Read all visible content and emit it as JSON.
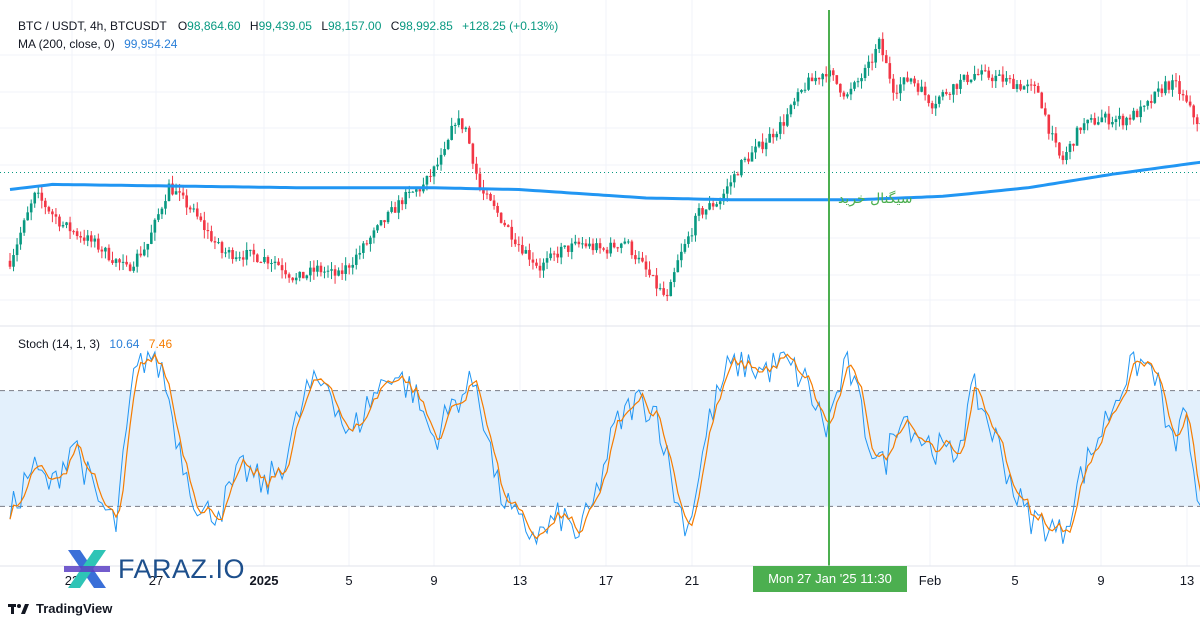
{
  "legend": {
    "symbol": "BTC / USDT, 4h, BTCUSDT",
    "o_label": "O",
    "o_value": "98,864.60",
    "h_label": "H",
    "h_value": "99,439.05",
    "l_label": "L",
    "l_value": "98,157.00",
    "c_label": "C",
    "c_value": "98,992.85",
    "change": "+128.25 (+0.13%)",
    "ma_label": "MA (200, close, 0)",
    "ma_value": "99,954.24",
    "stoch_label": "Stoch (14, 1, 3)",
    "stoch_k": "10.64",
    "stoch_d": "7.46"
  },
  "annotation": "سیگنال خرید",
  "crosshair_label": "Mon 27 Jan '25   11:30",
  "brand": "FARAZ.IO",
  "footer": "TradingView",
  "colors": {
    "up": "#089981",
    "down": "#f23645",
    "ma": "#2196f3",
    "stoch_k": "#2196f3",
    "stoch_d": "#f57c00",
    "signal": "#4caf50",
    "band": "#e3f0fc"
  },
  "chart_data": [
    {
      "type": "candlestick",
      "x_range": [
        "Dec 20 2024",
        "Feb 13 2025"
      ],
      "x_ticks": [
        "23",
        "27",
        "2025",
        "5",
        "9",
        "13",
        "17",
        "21",
        "Feb",
        "5",
        "9",
        "13"
      ],
      "close_path": [
        [
          0,
          93900
        ],
        [
          1.2,
          97800
        ],
        [
          2.5,
          96000
        ],
        [
          4,
          94900
        ],
        [
          5.5,
          93400
        ],
        [
          6.5,
          94900
        ],
        [
          7.5,
          98300
        ],
        [
          8.5,
          97000
        ],
        [
          10,
          94400
        ],
        [
          11.5,
          94200
        ],
        [
          12.5,
          93900
        ],
        [
          13.5,
          92800
        ],
        [
          14.5,
          93400
        ],
        [
          15.5,
          93000
        ],
        [
          16.5,
          94400
        ],
        [
          17.5,
          96000
        ],
        [
          18.5,
          97500
        ],
        [
          19.5,
          98300
        ],
        [
          20.5,
          100200
        ],
        [
          21,
          102200
        ],
        [
          21.5,
          101700
        ],
        [
          22.2,
          98000
        ],
        [
          23,
          96700
        ],
        [
          24,
          94900
        ],
        [
          25,
          93500
        ],
        [
          26,
          94500
        ],
        [
          27,
          94900
        ],
        [
          28,
          94500
        ],
        [
          29,
          95100
        ],
        [
          30.5,
          92400
        ],
        [
          31,
          91600
        ],
        [
          31.5,
          93800
        ],
        [
          32.5,
          96700
        ],
        [
          33.5,
          97500
        ],
        [
          34.5,
          99600
        ],
        [
          35.5,
          100800
        ],
        [
          36.5,
          102100
        ],
        [
          37.5,
          104200
        ],
        [
          38.5,
          105100
        ],
        [
          39.5,
          103600
        ],
        [
          40.5,
          105300
        ],
        [
          41,
          106700
        ],
        [
          41.7,
          104000
        ],
        [
          42.5,
          104700
        ],
        [
          43.5,
          103200
        ],
        [
          44.5,
          104200
        ],
        [
          45.5,
          104900
        ],
        [
          46.5,
          104700
        ],
        [
          47.5,
          104300
        ],
        [
          48.5,
          103900
        ],
        [
          49.1,
          101300
        ],
        [
          49.6,
          99700
        ],
        [
          50.5,
          101800
        ],
        [
          51.5,
          102300
        ],
        [
          52.5,
          102200
        ],
        [
          53.5,
          102800
        ],
        [
          54.5,
          104300
        ],
        [
          55,
          104200
        ],
        [
          55.8,
          102500
        ],
        [
          56.5,
          101300
        ],
        [
          57.2,
          99900
        ],
        [
          57.6,
          99100
        ]
      ],
      "ma200": [
        [
          0,
          98100
        ],
        [
          2,
          98400
        ],
        [
          8,
          98300
        ],
        [
          14,
          98200
        ],
        [
          20,
          98200
        ],
        [
          24,
          98100
        ],
        [
          30,
          97600
        ],
        [
          34,
          97500
        ],
        [
          40,
          97500
        ],
        [
          44,
          97700
        ],
        [
          48,
          98200
        ],
        [
          52,
          99000
        ],
        [
          57.6,
          99954
        ]
      ],
      "signal": {
        "date": "Mon 27 Jan '25 11:30",
        "label": "سیگنال خرید"
      }
    },
    {
      "type": "line",
      "name": "Stoch (14, 1, 3)",
      "ylim": [
        0,
        100
      ],
      "levels": [
        80,
        20
      ],
      "series": [
        {
          "name": "K",
          "last": 10.64,
          "points": [
            [
              0,
              15
            ],
            [
              1,
              40
            ],
            [
              2,
              30
            ],
            [
              3,
              55
            ],
            [
              4,
              25
            ],
            [
              5,
              10
            ],
            [
              5.8,
              85
            ],
            [
              6.5,
              100
            ],
            [
              7.2,
              90
            ],
            [
              8,
              50
            ],
            [
              9,
              15
            ],
            [
              10,
              20
            ],
            [
              11,
              40
            ],
            [
              12,
              30
            ],
            [
              13,
              45
            ],
            [
              14,
              80
            ],
            [
              15,
              85
            ],
            [
              16,
              55
            ],
            [
              17,
              75
            ],
            [
              18,
              90
            ],
            [
              19,
              80
            ],
            [
              20,
              55
            ],
            [
              21,
              75
            ],
            [
              22,
              85
            ],
            [
              23,
              30
            ],
            [
              24,
              10
            ],
            [
              25,
              5
            ],
            [
              26,
              15
            ],
            [
              26.8,
              5
            ],
            [
              27.5,
              20
            ],
            [
              28.5,
              60
            ],
            [
              29.5,
              75
            ],
            [
              30.5,
              70
            ],
            [
              31.5,
              20
            ],
            [
              32,
              10
            ],
            [
              33,
              65
            ],
            [
              33.8,
              90
            ],
            [
              34.5,
              95
            ],
            [
              35.5,
              90
            ],
            [
              36.5,
              95
            ],
            [
              37.5,
              85
            ],
            [
              38.5,
              60
            ],
            [
              39.5,
              95
            ],
            [
              40.5,
              55
            ],
            [
              41.2,
              40
            ],
            [
              42,
              70
            ],
            [
              43,
              55
            ],
            [
              44.5,
              45
            ],
            [
              45.5,
              80
            ],
            [
              46.5,
              55
            ],
            [
              47.5,
              25
            ],
            [
              48,
              15
            ],
            [
              49,
              10
            ],
            [
              49.6,
              5
            ],
            [
              50.5,
              35
            ],
            [
              51.5,
              60
            ],
            [
              52.5,
              85
            ],
            [
              53.2,
              95
            ],
            [
              54,
              90
            ],
            [
              54.8,
              50
            ],
            [
              55.5,
              70
            ],
            [
              56,
              15
            ],
            [
              56.8,
              10
            ],
            [
              57.6,
              8
            ]
          ]
        },
        {
          "name": "D",
          "last": 7.46
        }
      ]
    }
  ]
}
